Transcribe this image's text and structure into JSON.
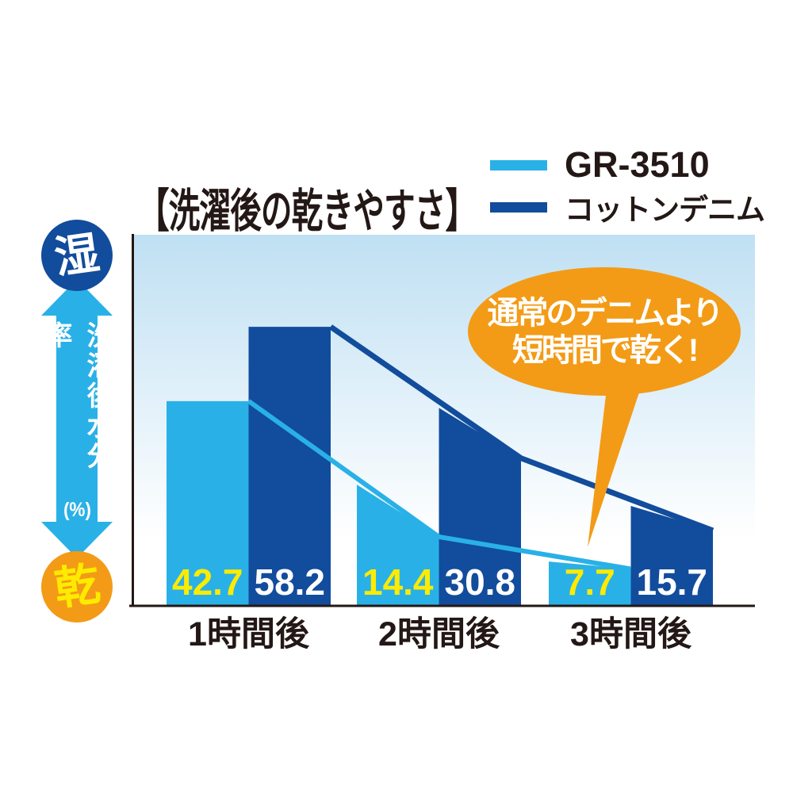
{
  "page": {
    "title": "【洗濯後の乾きやすさ】"
  },
  "legend": {
    "items": [
      {
        "label": "GR-3510",
        "color": "#29b1e7"
      },
      {
        "label": "コットンデニム",
        "color": "#124c9c"
      }
    ]
  },
  "y_axis": {
    "wet_label": "湿",
    "dry_label": "乾",
    "axis_label": "洗濯後水分率",
    "axis_unit": "(%)"
  },
  "callout": {
    "line1": "通常のデニムより",
    "line2": "短時間で乾く!"
  },
  "chart_data": {
    "type": "bar",
    "title": "【洗濯後の乾きやすさ】",
    "categories": [
      "1時間後",
      "2時間後",
      "3時間後"
    ],
    "series": [
      {
        "name": "GR-3510",
        "color": "#29b1e7",
        "value_label_color": "#ffeb00",
        "values": [
          42.7,
          14.4,
          7.7
        ]
      },
      {
        "name": "コットンデニム",
        "color": "#124c9c",
        "value_label_color": "#ffffff",
        "values": [
          58.2,
          30.8,
          15.7
        ]
      }
    ],
    "ylabel": "洗濯後水分率(%)",
    "y_direction_labels": {
      "top": "湿",
      "bottom": "乾"
    },
    "ylim": [
      0,
      77.4
    ],
    "grid": false,
    "legend_position": "top-right",
    "annotation": "通常のデニムより短時間で乾く!",
    "plot_background": {
      "top": "#bfe0f3",
      "bottom": "#ffffff"
    }
  },
  "colors": {
    "light_blue": "#29b1e7",
    "dark_blue": "#124c9c",
    "orange": "#f39b16",
    "value_yellow": "#ffeb00",
    "ink": "#231815",
    "axis_line": "#231815",
    "background": "#ffffff"
  }
}
